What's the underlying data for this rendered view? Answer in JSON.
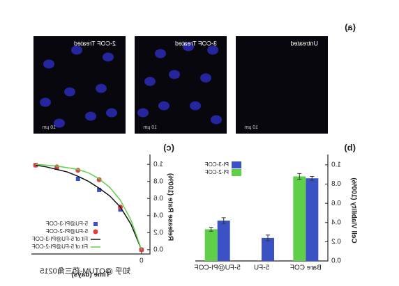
{
  "figure": {
    "panel_labels": [
      "(a)",
      "(b)",
      "(c)"
    ],
    "micrographs": [
      {
        "caption": "Untreated",
        "scale": "10 µm"
      },
      {
        "caption": "3-COF Treated",
        "scale": "10 µm"
      },
      {
        "caption": "2-COF Treated",
        "scale": "10 µm"
      }
    ],
    "watermark": "知乎 @OTUM-药三角0215"
  },
  "chart_data": [
    {
      "type": "bar",
      "ylabel": "Cell Viability (100%)",
      "categories": [
        "Bare COF",
        "5-FU",
        "5-FU@PI-COF"
      ],
      "series": [
        {
          "name": "PI-3-COF",
          "color": "#3a52c4",
          "values": [
            0.86,
            0.24,
            0.42
          ],
          "errors": [
            0.02,
            0.03,
            0.03
          ]
        },
        {
          "name": "PI-2-COF",
          "color": "#5fcf4a",
          "values": [
            0.88,
            null,
            0.33
          ],
          "errors": [
            0.03,
            null,
            0.02
          ]
        }
      ],
      "ylim": [
        0,
        1.05
      ],
      "yticks": [
        {
          "value": 0,
          "label": "0.0"
        },
        0.2,
        0.4,
        0.6,
        0.8,
        {
          "value": 1,
          "label": "1.0"
        }
      ],
      "legend": "upper right"
    },
    {
      "type": "scatter",
      "xlabel": "Time (days)",
      "ylabel": "Release Rate (100%)",
      "series": [
        {
          "name": "5-FU@PI-3-COF",
          "color": "#3a52c4",
          "marker": "square",
          "x": [
            0,
            1,
            2,
            3,
            4,
            5
          ],
          "values": [
            0,
            0.47,
            0.7,
            0.83,
            0.96,
            0.99
          ]
        },
        {
          "name": "5-FU@PI-2-COF",
          "color": "#e04040",
          "marker": "circle",
          "x": [
            0,
            1,
            2,
            3,
            4,
            5
          ],
          "values": [
            0,
            0.5,
            0.82,
            0.93,
            0.97,
            0.99
          ]
        },
        {
          "name": "Fit of 5-FU@PI-3-COF",
          "color": "#111111",
          "marker": "line",
          "x": [
            0,
            0.5,
            1,
            1.5,
            2,
            2.5,
            3,
            3.5,
            4,
            4.5,
            5
          ],
          "values": [
            0,
            0.3,
            0.5,
            0.63,
            0.72,
            0.8,
            0.86,
            0.91,
            0.94,
            0.97,
            0.99
          ]
        },
        {
          "name": "Fit of 5-FU@PI-2-COF",
          "color": "#5fcf4a",
          "marker": "line",
          "x": [
            0,
            0.5,
            1,
            1.5,
            2,
            2.5,
            3,
            3.5,
            4,
            4.5,
            5
          ],
          "values": [
            0,
            0.35,
            0.58,
            0.73,
            0.83,
            0.9,
            0.94,
            0.96,
            0.98,
            0.99,
            1.0
          ]
        }
      ],
      "xlim": [
        -0.4,
        5.2
      ],
      "xticks": [
        0
      ],
      "ylim": [
        -0.05,
        1.05
      ],
      "yticks": [
        {
          "value": 0,
          "label": "0.0"
        },
        0.2,
        0.4,
        0.6,
        0.8,
        {
          "value": 1,
          "label": "1.0"
        }
      ],
      "legend": "lower right"
    }
  ]
}
